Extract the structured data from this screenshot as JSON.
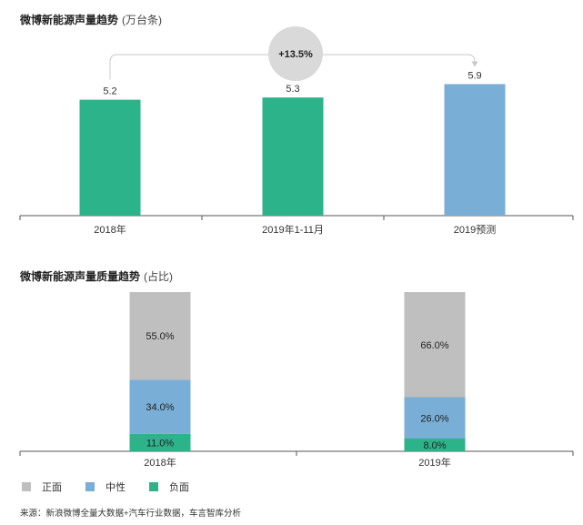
{
  "chart1": {
    "title": "微博新能源声量趋势",
    "unit": "(万台条)",
    "growth_label": "+13.5%",
    "colors": {
      "actual": "#2db38a",
      "forecast": "#79aed6",
      "axis": "#555555",
      "bubble": "#d9d9d9",
      "bracket": "#c8c8c8"
    },
    "chart_data": {
      "type": "bar",
      "categories": [
        "2018年",
        "2019年1-11月",
        "2019预测"
      ],
      "values": [
        5.2,
        5.3,
        5.9
      ],
      "value_labels": [
        "5.2",
        "5.3",
        "5.9"
      ],
      "forecast_index": 2
    }
  },
  "chart2": {
    "title": "微博新能源声量质量趋势",
    "unit": "(占比)",
    "colors": {
      "axis": "#555555"
    },
    "chart_data": {
      "type": "bar",
      "stacked": true,
      "percent": true,
      "categories": [
        "2018年",
        "2019年"
      ],
      "series": [
        {
          "name": "负面",
          "values": [
            11.0,
            8.0
          ],
          "labels": [
            "11.0%",
            "8.0%"
          ],
          "color": "#2db38a"
        },
        {
          "name": "中性",
          "values": [
            34.0,
            26.0
          ],
          "labels": [
            "34.0%",
            "26.0%"
          ],
          "color": "#79aed6"
        },
        {
          "name": "正面",
          "values": [
            55.0,
            66.0
          ],
          "labels": [
            "55.0%",
            "66.0%"
          ],
          "color": "#bfbfbf"
        }
      ]
    }
  },
  "legend": [
    {
      "label": "正面",
      "color": "#bfbfbf"
    },
    {
      "label": "中性",
      "color": "#79aed6"
    },
    {
      "label": "负面",
      "color": "#2db38a"
    }
  ],
  "source": "来源：新浪微博全量大数据+汽车行业数据，车言智库分析"
}
